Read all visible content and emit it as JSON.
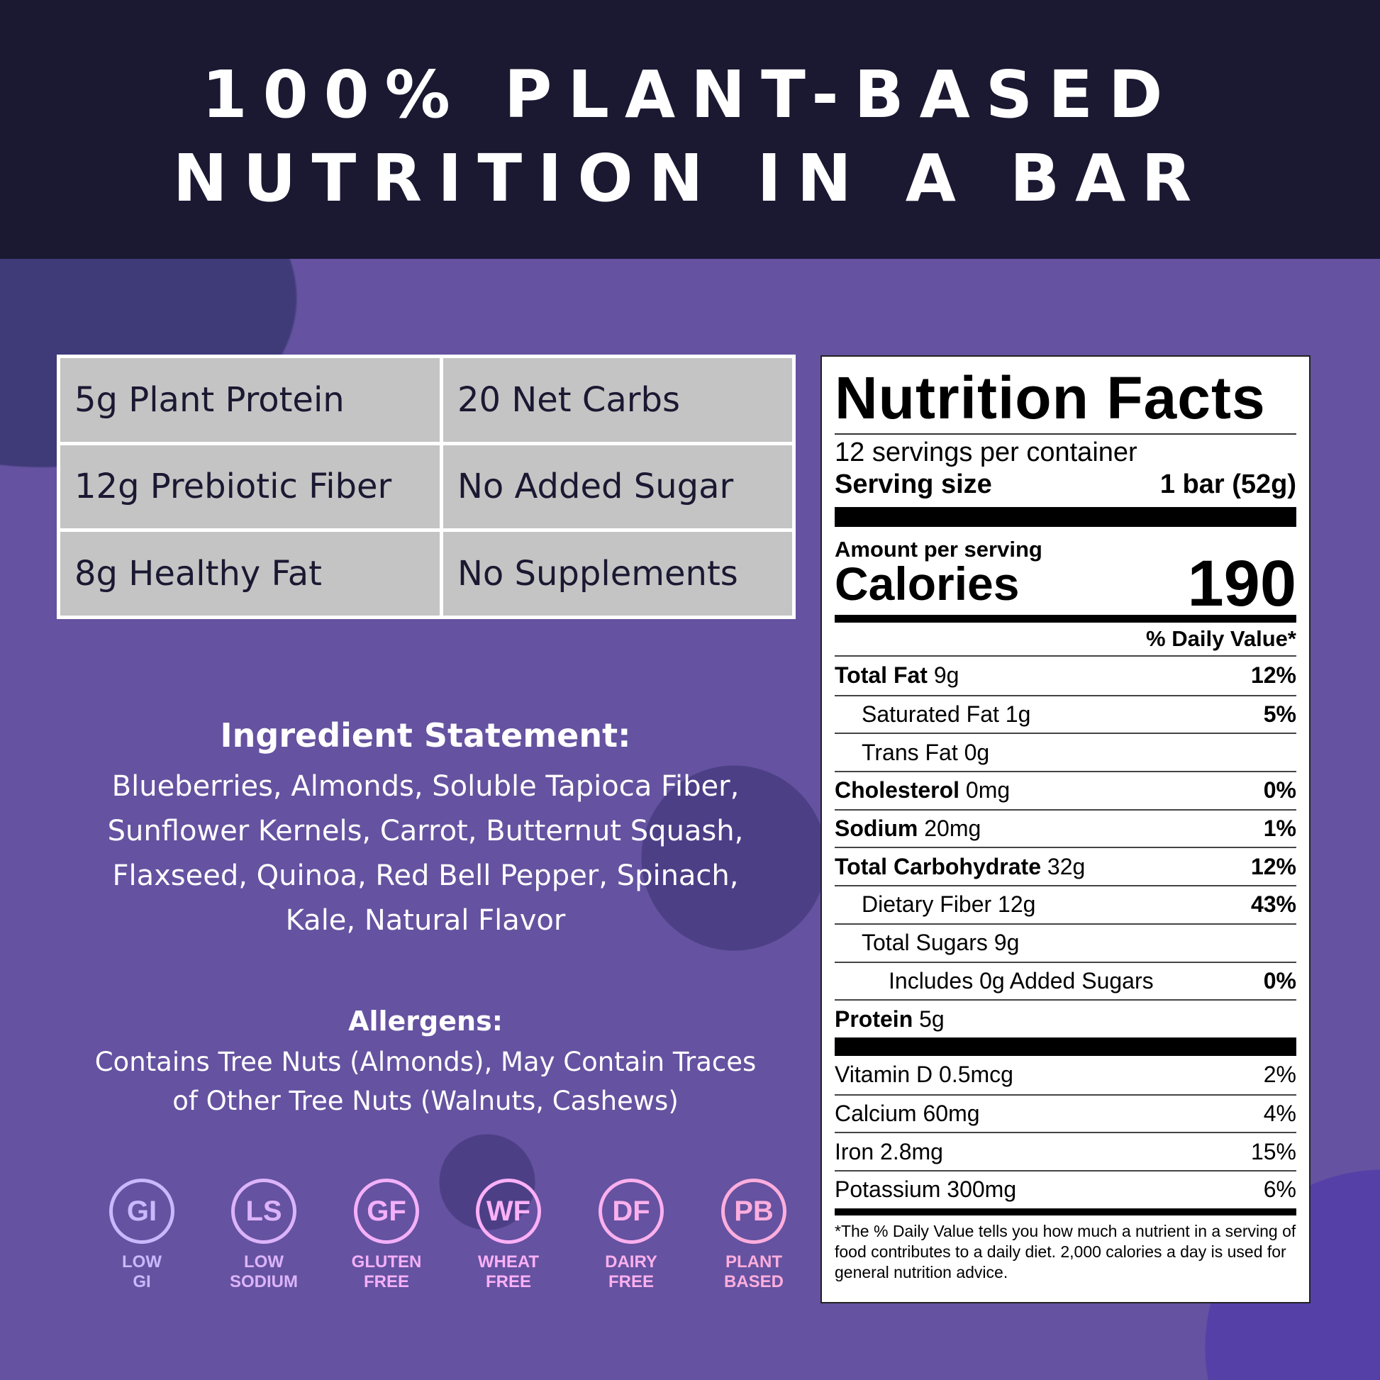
{
  "header": {
    "line1": "100% PLANT-BASED",
    "line2": "NUTRITION IN A BAR"
  },
  "highlights": [
    "5g Plant Protein",
    "20 Net Carbs",
    "12g Prebiotic Fiber",
    "No Added Sugar",
    "8g Healthy Fat",
    "No Supplements"
  ],
  "ingredients": {
    "heading": "Ingredient Statement:",
    "lines": [
      "Blueberries, Almonds, Soluble Tapioca Fiber,",
      "Sunflower Kernels, Carrot, Butternut Squash,",
      "Flaxseed, Quinoa, Red Bell Pepper, Spinach,",
      "Kale, Natural Flavor"
    ]
  },
  "allergens": {
    "heading": "Allergens:",
    "lines": [
      "Contains Tree Nuts (Almonds), May Contain Traces",
      "of Other Tree Nuts (Walnuts, Cashews)"
    ]
  },
  "badges": [
    {
      "abbr": "GI",
      "l1": "LOW",
      "l2": "GI",
      "color": "#c9b8ff"
    },
    {
      "abbr": "LS",
      "l1": "LOW",
      "l2": "SODIUM",
      "color": "#dcb4fb"
    },
    {
      "abbr": "GF",
      "l1": "GLUTEN",
      "l2": "FREE",
      "color": "#f4b0fb"
    },
    {
      "abbr": "WF",
      "l1": "WHEAT",
      "l2": "FREE",
      "color": "#fbb0f8"
    },
    {
      "abbr": "DF",
      "l1": "DAIRY",
      "l2": "FREE",
      "color": "#fbb0ee"
    },
    {
      "abbr": "PB",
      "l1": "PLANT",
      "l2": "BASED",
      "color": "#ffaedd"
    }
  ],
  "nutrition": {
    "title": "Nutrition Facts",
    "servings": "12  servings per container",
    "serving_size_label": "Serving size",
    "serving_size": "1 bar (52g)",
    "amount_label": "Amount per serving",
    "calories_label": "Calories",
    "calories": "190",
    "dv_label": "% Daily Value*",
    "rows": [
      {
        "bold": "Total Fat",
        "val": " 9g",
        "dv": "12%"
      },
      {
        "bold": "",
        "val": "Saturated Fat 1g",
        "dv": "5%"
      },
      {
        "bold": "",
        "val": "Trans Fat 0g",
        "dv": ""
      },
      {
        "bold": "Cholesterol",
        "val": " 0mg",
        "dv": "0%"
      },
      {
        "bold": "Sodium",
        "val": " 20mg",
        "dv": "1%"
      },
      {
        "bold": "Total Carbohydrate",
        "val": " 32g",
        "dv": "12%"
      },
      {
        "bold": "",
        "val": "Dietary Fiber 12g",
        "dv": "43%"
      },
      {
        "bold": "",
        "val": "Total Sugars 9g",
        "dv": ""
      },
      {
        "bold": "",
        "val": "Includes 0g Added Sugars",
        "dv": "0%"
      },
      {
        "bold": "Protein",
        "val": " 5g",
        "dv": ""
      }
    ],
    "vitamins": [
      {
        "label": "Vitamin D 0.5mcg",
        "dv": "2%"
      },
      {
        "label": "Calcium 60mg",
        "dv": "4%"
      },
      {
        "label": "Iron 2.8mg",
        "dv": "15%"
      },
      {
        "label": "Potassium 300mg",
        "dv": "6%"
      }
    ],
    "footnote": "*The % Daily Value tells you how much a nutrient in a serving of food contributes to a daily diet. 2,000 calories a day is used for general nutrition advice."
  }
}
